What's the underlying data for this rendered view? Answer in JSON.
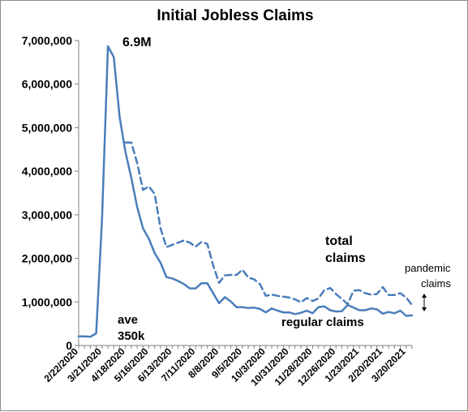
{
  "chart_data": {
    "type": "line",
    "title": "Initial Jobless Claims",
    "xlabel": "",
    "ylabel": "",
    "ylim": [
      0,
      7000000
    ],
    "yticks": [
      0,
      1000000,
      2000000,
      3000000,
      4000000,
      5000000,
      6000000,
      7000000
    ],
    "ytick_labels": [
      "0",
      "1,000,000",
      "2,000,000",
      "3,000,000",
      "4,000,000",
      "5,000,000",
      "6,000,000",
      "7,000,000"
    ],
    "xtick_labels": [
      "2/22/2020",
      "3/21/2020",
      "4/18/2020",
      "5/16/2020",
      "6/13/2020",
      "7/11/2020",
      "8/8/2020",
      "9/5/2020",
      "10/3/2020",
      "10/31/2020",
      "11/28/2020",
      "12/26/2020",
      "1/23/2021",
      "2/20/2021",
      "3/20/2021"
    ],
    "x": [
      "2/22/2020",
      "2/29/2020",
      "3/7/2020",
      "3/14/2020",
      "3/21/2020",
      "3/28/2020",
      "4/4/2020",
      "4/11/2020",
      "4/18/2020",
      "4/25/2020",
      "5/2/2020",
      "5/9/2020",
      "5/16/2020",
      "5/23/2020",
      "5/30/2020",
      "6/6/2020",
      "6/13/2020",
      "6/20/2020",
      "6/27/2020",
      "7/4/2020",
      "7/11/2020",
      "7/18/2020",
      "7/25/2020",
      "8/1/2020",
      "8/8/2020",
      "8/15/2020",
      "8/22/2020",
      "8/29/2020",
      "9/5/2020",
      "9/12/2020",
      "9/19/2020",
      "9/26/2020",
      "10/3/2020",
      "10/10/2020",
      "10/17/2020",
      "10/24/2020",
      "10/31/2020",
      "11/7/2020",
      "11/14/2020",
      "11/21/2020",
      "11/28/2020",
      "12/5/2020",
      "12/12/2020",
      "12/19/2020",
      "12/26/2020",
      "1/2/2021",
      "1/9/2021",
      "1/16/2021",
      "1/23/2021",
      "1/30/2021",
      "2/6/2021",
      "2/13/2021",
      "2/20/2021",
      "2/27/2021",
      "3/6/2021",
      "3/13/2021",
      "3/20/2021",
      "3/27/2021"
    ],
    "series": [
      {
        "name": "regular claims",
        "color": "#4a7ebb",
        "style": "solid",
        "values": [
          210000,
          210000,
          200000,
          280000,
          2910000,
          6870000,
          6620000,
          5240000,
          4440000,
          3850000,
          3180000,
          2690000,
          2450000,
          2120000,
          1900000,
          1570000,
          1540000,
          1480000,
          1410000,
          1310000,
          1310000,
          1430000,
          1430000,
          1200000,
          970000,
          1110000,
          1010000,
          880000,
          880000,
          860000,
          870000,
          840000,
          760000,
          850000,
          800000,
          760000,
          760000,
          720000,
          750000,
          800000,
          740000,
          880000,
          900000,
          810000,
          780000,
          790000,
          930000,
          870000,
          810000,
          810000,
          850000,
          830000,
          730000,
          770000,
          740000,
          800000,
          680000,
          690000
        ]
      },
      {
        "name": "total claims",
        "color": "#4a7ebb",
        "style": "dashed",
        "values": [
          null,
          null,
          null,
          null,
          null,
          null,
          null,
          null,
          4660000,
          4660000,
          4190000,
          3570000,
          3650000,
          3480000,
          2690000,
          2260000,
          2310000,
          2360000,
          2410000,
          2360000,
          2270000,
          2380000,
          2330000,
          1840000,
          1440000,
          1610000,
          1620000,
          1620000,
          1740000,
          1560000,
          1520000,
          1410000,
          1140000,
          1170000,
          1140000,
          1120000,
          1100000,
          1060000,
          990000,
          1090000,
          1020000,
          1080000,
          1270000,
          1320000,
          1180000,
          1070000,
          950000,
          1260000,
          1270000,
          1200000,
          1170000,
          1180000,
          1340000,
          1160000,
          1160000,
          1200000,
          1100000,
          930000
        ]
      }
    ],
    "annotations": {
      "peak": "6.9M",
      "avg_line1": "ave",
      "avg_line2": "350k",
      "total_line1": "total",
      "total_line2": "claims",
      "pandemic_line1": "pandemic",
      "pandemic_line2": "claims",
      "regular": "regular claims"
    },
    "grid": false,
    "legend": "none"
  }
}
